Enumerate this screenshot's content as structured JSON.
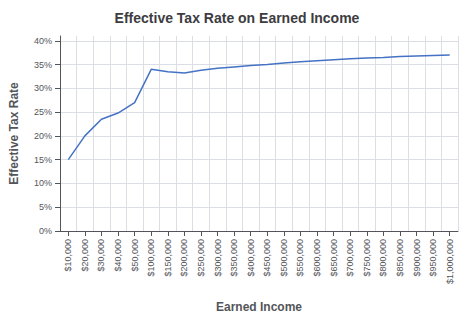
{
  "chart_data": {
    "type": "line",
    "title": "Effective Tax Rate on Earned Income",
    "xlabel": "Earned Income",
    "ylabel": "Effective Tax Rate",
    "categories": [
      "$10,000",
      "$20,000",
      "$30,000",
      "$40,000",
      "$50,000",
      "$100,000",
      "$150,000",
      "$200,000",
      "$250,000",
      "$300,000",
      "$350,000",
      "$400,000",
      "$450,000",
      "$500,000",
      "$550,000",
      "$600,000",
      "$650,000",
      "$700,000",
      "$750,000",
      "$800,000",
      "$850,000",
      "$900,000",
      "$950,000",
      "$1,000,000"
    ],
    "values": [
      15.0,
      20.0,
      23.5,
      24.8,
      27.0,
      34.0,
      33.5,
      33.2,
      33.8,
      34.2,
      34.5,
      34.8,
      35.0,
      35.3,
      35.6,
      35.8,
      36.0,
      36.2,
      36.4,
      36.5,
      36.7,
      36.8,
      36.9,
      37.0
    ],
    "color": "#4472C4",
    "ylim": [
      0,
      41
    ],
    "yticks": [
      {
        "value": 0,
        "label": "0%"
      },
      {
        "value": 5,
        "label": "5%"
      },
      {
        "value": 10,
        "label": "10%"
      },
      {
        "value": 15,
        "label": "15%"
      },
      {
        "value": 20,
        "label": "20%"
      },
      {
        "value": 25,
        "label": "25%"
      },
      {
        "value": 30,
        "label": "30%"
      },
      {
        "value": 35,
        "label": "35%"
      },
      {
        "value": 40,
        "label": "40%"
      }
    ],
    "grid": true
  }
}
